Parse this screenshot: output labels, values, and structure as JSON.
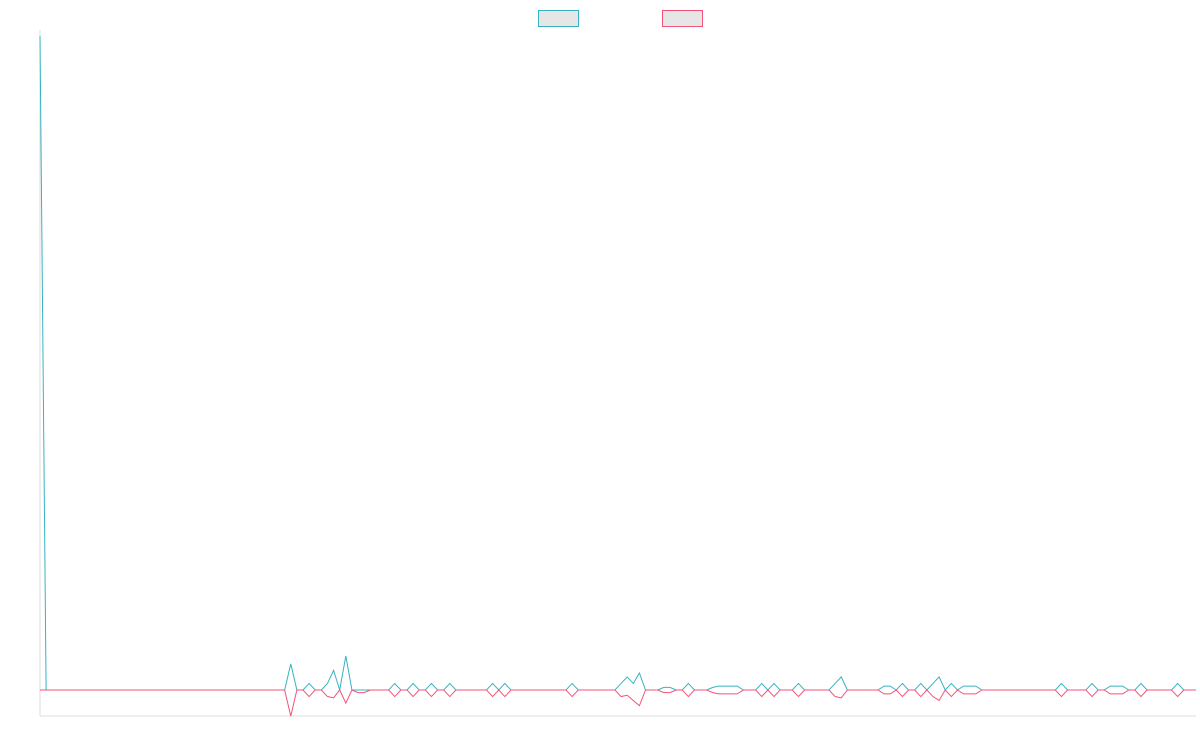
{
  "chart_data": {
    "type": "line",
    "title": "",
    "xlabel": "",
    "ylabel": "",
    "grid": false,
    "legend": "top-center",
    "ylim": [
      -1,
      25
    ],
    "series": [
      {
        "name": "",
        "color": "#36b3c2",
        "legend_fill": "#e6e6e6",
        "values": [
          25,
          0,
          0,
          0,
          0,
          0,
          0,
          0,
          0,
          0,
          0,
          0,
          0,
          0,
          0,
          0,
          0,
          0,
          0,
          0,
          0,
          0,
          0,
          0,
          0,
          0,
          0,
          0,
          0,
          0,
          0,
          0,
          0,
          0,
          0,
          0,
          0,
          0,
          0,
          0,
          0,
          1,
          0,
          0,
          0.25,
          0,
          0,
          0.25,
          0.75,
          0,
          1.3,
          0,
          0,
          0,
          0,
          0,
          0,
          0,
          0.25,
          0,
          0,
          0.25,
          0,
          0,
          0.25,
          0,
          0,
          0.25,
          0,
          0,
          0,
          0,
          0,
          0,
          0.25,
          0,
          0.25,
          0,
          0,
          0,
          0,
          0,
          0,
          0,
          0,
          0,
          0,
          0.25,
          0,
          0,
          0,
          0,
          0,
          0,
          0,
          0.25,
          0.5,
          0.25,
          0.65,
          0,
          0,
          0,
          0.1,
          0.1,
          0,
          0,
          0.25,
          0,
          0,
          0,
          0.1,
          0.15,
          0.15,
          0.15,
          0.15,
          0,
          0,
          0,
          0.25,
          0,
          0.25,
          0,
          0,
          0,
          0.25,
          0,
          0,
          0,
          0,
          0,
          0.25,
          0.5,
          0,
          0,
          0,
          0,
          0,
          0,
          0.15,
          0.15,
          0,
          0.25,
          0,
          0,
          0.25,
          0,
          0.25,
          0.5,
          0,
          0.25,
          0,
          0.15,
          0.15,
          0.15,
          0,
          0,
          0,
          0,
          0,
          0,
          0,
          0,
          0,
          0,
          0,
          0,
          0,
          0.25,
          0,
          0,
          0,
          0,
          0.25,
          0,
          0,
          0.15,
          0.15,
          0.15,
          0,
          0,
          0.25,
          0,
          0,
          0,
          0,
          0,
          0.25,
          0,
          0,
          0
        ]
      },
      {
        "name": "",
        "color": "#f25479",
        "legend_fill": "#e6e6e6",
        "values": [
          0,
          0,
          0,
          0,
          0,
          0,
          0,
          0,
          0,
          0,
          0,
          0,
          0,
          0,
          0,
          0,
          0,
          0,
          0,
          0,
          0,
          0,
          0,
          0,
          0,
          0,
          0,
          0,
          0,
          0,
          0,
          0,
          0,
          0,
          0,
          0,
          0,
          0,
          0,
          0,
          0,
          -1,
          0,
          0,
          -0.25,
          0,
          0,
          -0.25,
          -0.3,
          0,
          -0.5,
          0,
          -0.1,
          -0.1,
          0,
          0,
          0,
          0,
          -0.25,
          0,
          0,
          -0.25,
          0,
          0,
          -0.25,
          0,
          0,
          -0.25,
          0,
          0,
          0,
          0,
          0,
          0,
          -0.25,
          0,
          -0.25,
          0,
          0,
          0,
          0,
          0,
          0,
          0,
          0,
          0,
          0,
          -0.25,
          0,
          0,
          0,
          0,
          0,
          0,
          0,
          -0.25,
          -0.2,
          -0.4,
          -0.6,
          0,
          0,
          0,
          -0.1,
          -0.1,
          0,
          0,
          -0.25,
          0,
          0,
          0,
          -0.1,
          -0.15,
          -0.15,
          -0.15,
          -0.15,
          0,
          0,
          0,
          -0.25,
          0,
          -0.25,
          0,
          0,
          0,
          -0.25,
          0,
          0,
          0,
          0,
          0,
          -0.25,
          -0.3,
          0,
          0,
          0,
          0,
          0,
          0,
          -0.15,
          -0.15,
          0,
          -0.25,
          0,
          0,
          -0.25,
          0,
          -0.25,
          -0.4,
          0,
          -0.25,
          0,
          -0.15,
          -0.15,
          -0.15,
          0,
          0,
          0,
          0,
          0,
          0,
          0,
          0,
          0,
          0,
          0,
          0,
          0,
          -0.25,
          0,
          0,
          0,
          0,
          -0.25,
          0,
          0,
          -0.15,
          -0.15,
          -0.15,
          0,
          0,
          -0.25,
          0,
          0,
          0,
          0,
          0,
          -0.25,
          0,
          0,
          0
        ]
      }
    ]
  }
}
